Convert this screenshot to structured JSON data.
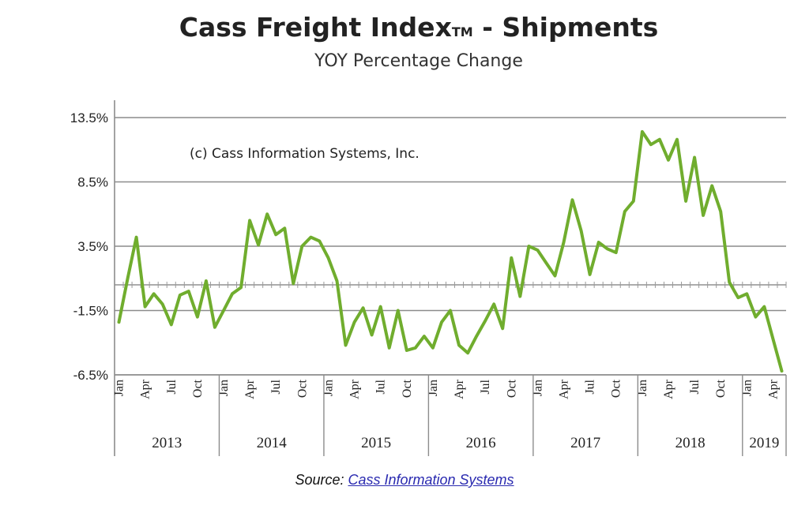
{
  "chart_data": {
    "type": "line",
    "title": "Cass Freight Index",
    "title_trademark": "TM",
    "title_suffix": " - Shipments",
    "subtitle": "YOY Percentage Change",
    "annotation": "(c) Cass Information Systems, Inc.",
    "y_ticks": [
      "13.5%",
      "8.5%",
      "3.5%",
      "-1.5%",
      "-6.5%"
    ],
    "y_tick_values": [
      13.5,
      8.5,
      3.5,
      -1.5,
      -6.5
    ],
    "ylim": [
      -6.5,
      13.5
    ],
    "zero_line": 0.5,
    "grid": "horizontal",
    "month_labels": [
      "Jan",
      "Apr",
      "Jul",
      "Oct"
    ],
    "years": [
      "2013",
      "2014",
      "2015",
      "2016",
      "2017",
      "2018",
      "2019"
    ],
    "series_color": "#70ad2e",
    "series": [
      {
        "values": [
          -2.4,
          1.0,
          4.2,
          -1.2,
          -0.2,
          -1.0,
          -2.6,
          -0.3,
          0.0,
          -2.0,
          0.8,
          -2.8,
          -1.5,
          -0.2,
          0.3,
          5.5,
          3.6,
          6.0,
          4.4,
          4.9,
          0.6,
          3.5,
          4.2,
          3.9,
          2.6,
          0.8,
          -4.2,
          -2.4,
          -1.3,
          -3.4,
          -1.2,
          -4.4,
          -1.5,
          -4.6,
          -4.4,
          -3.5,
          -4.4,
          -2.4,
          -1.5,
          -4.2,
          -4.8,
          -3.5,
          -2.3,
          -1.0,
          -2.9,
          2.6,
          -0.4,
          3.5,
          3.2,
          2.2,
          1.2,
          3.8,
          7.1,
          4.7,
          1.3,
          3.8,
          3.3,
          3.0,
          6.2,
          7.0,
          12.4,
          11.4,
          11.8,
          10.2,
          11.8,
          7.0,
          10.4,
          5.9,
          8.2,
          6.2,
          0.7,
          -0.5,
          -0.2,
          -2.0,
          -1.2,
          -3.7,
          -6.2
        ]
      }
    ]
  },
  "source": {
    "label": "Source: ",
    "link_text": "Cass Information Systems"
  }
}
